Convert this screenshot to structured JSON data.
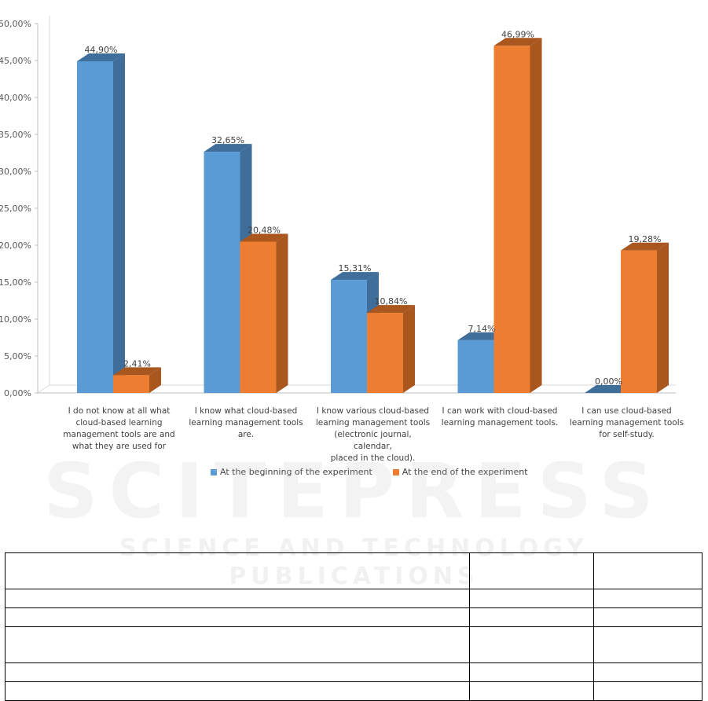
{
  "chart_data": {
    "type": "bar",
    "style": "3d-clustered",
    "categories": [
      "I do not know at all what cloud-based learning management tools are and what they are used for",
      "I know what cloud-based learning management tools are.",
      "I know various cloud-based learning management tools (electronic journal, calendar, placed in the cloud).",
      "I can work with cloud-based learning management tools.",
      "I can use cloud-based learning management tools for self-study."
    ],
    "category_lines": [
      [
        "I do not know at all what",
        "cloud-based learning",
        "management tools are and",
        "what they are used for"
      ],
      [
        "I know what cloud-based",
        "learning management tools",
        "are."
      ],
      [
        "I know various cloud-based",
        "learning management tools",
        "(electronic journal, calendar,",
        "placed in the cloud)."
      ],
      [
        "I can work with cloud-based",
        "learning management tools."
      ],
      [
        "I can use cloud-based",
        "learning management tools",
        "for self-study."
      ]
    ],
    "series": [
      {
        "name": "At the beginning of the experiment",
        "values": [
          44.9,
          32.65,
          15.31,
          7.14,
          0.0
        ],
        "labels": [
          "44,90%",
          "32,65%",
          "15,31%",
          "7,14%",
          "0,00%"
        ],
        "color": "#5B9BD5",
        "side_color": "#3E6E99"
      },
      {
        "name": "At the end of the experiment",
        "values": [
          2.41,
          20.48,
          10.84,
          46.99,
          19.28
        ],
        "labels": [
          "2,41%",
          "20,48%",
          "10,84%",
          "46,99%",
          "19,28%"
        ],
        "color": "#ED7D31",
        "side_color": "#A9561F"
      }
    ],
    "yticks": [
      "0,00%",
      "5,00%",
      "10,00%",
      "15,00%",
      "20,00%",
      "25,00%",
      "30,00%",
      "35,00%",
      "40,00%",
      "45,00%",
      "50,00%"
    ],
    "ylim": [
      0,
      50
    ],
    "legend_position": "bottom",
    "grid": false
  },
  "watermark": {
    "main": "SCITEPRESS",
    "sub": "SCIENCE AND TECHNOLOGY PUBLICATIONS"
  },
  "table": {
    "rows": [
      [
        "",
        "",
        ""
      ],
      [
        "",
        "",
        ""
      ],
      [
        "",
        "",
        ""
      ],
      [
        "",
        "",
        ""
      ],
      [
        "",
        "",
        ""
      ],
      [
        "",
        "",
        ""
      ]
    ]
  }
}
